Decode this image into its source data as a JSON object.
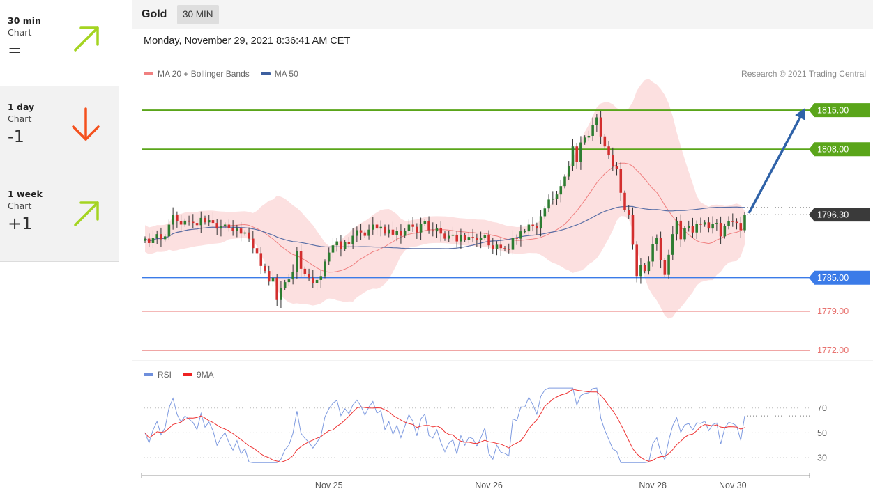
{
  "sidebar": {
    "items": [
      {
        "period": "30 min",
        "sub": "Chart",
        "signal": "=",
        "direction": "up",
        "arrow_color": "#a4d421"
      },
      {
        "period": "1 day",
        "sub": "Chart",
        "signal": "-1",
        "direction": "down",
        "arrow_color": "#f4511e"
      },
      {
        "period": "1 week",
        "sub": "Chart",
        "signal": "+1",
        "direction": "up",
        "arrow_color": "#a4d421"
      }
    ]
  },
  "header": {
    "title": "Gold",
    "timeframe": "30 MIN"
  },
  "chart": {
    "datetime": "Monday, November 29, 2021 8:36:41 AM CET",
    "legend": [
      {
        "label": "MA 20 + Bollinger Bands",
        "color": "#f08080"
      },
      {
        "label": "MA 50",
        "color": "#3d5f9f"
      }
    ],
    "research": "Research © 2021 Trading Central",
    "rsi_legend": [
      {
        "label": "RSI",
        "color": "#6f8fdc"
      },
      {
        "label": "9MA",
        "color": "#ee2222"
      }
    ]
  },
  "chart_data": [
    {
      "type": "candlestick",
      "title": "Gold",
      "x_ticks": [
        "Nov 25",
        "Nov 26",
        "Nov 28",
        "Nov 30"
      ],
      "ylim": [
        1770.5,
        1818.5
      ],
      "levels": [
        {
          "value": 1815.0,
          "label": "1815.00",
          "color": "#5aa51a",
          "kind": "resistance"
        },
        {
          "value": 1808.0,
          "label": "1808.00",
          "color": "#5aa51a",
          "kind": "resistance"
        },
        {
          "value": 1796.3,
          "label": "1796.30",
          "color": "#3a3a3a",
          "kind": "last"
        },
        {
          "value": 1785.0,
          "label": "1785.00",
          "color": "#3b7be8",
          "kind": "pivot"
        },
        {
          "value": 1779.0,
          "label": "1779.00",
          "color": "#e8726f",
          "kind": "support"
        },
        {
          "value": 1772.0,
          "label": "1772.00",
          "color": "#e8726f",
          "kind": "support"
        }
      ],
      "close": [
        1792.0,
        1791.2,
        1792.1,
        1792.8,
        1791.9,
        1792.4,
        1794.5,
        1796.2,
        1795.1,
        1794.5,
        1795.2,
        1795.0,
        1794.8,
        1794.4,
        1795.7,
        1794.9,
        1795.3,
        1794.8,
        1793.8,
        1794.2,
        1794.5,
        1793.9,
        1793.4,
        1793.8,
        1792.9,
        1793.1,
        1792.0,
        1790.3,
        1789.4,
        1787.1,
        1786.2,
        1784.3,
        1785.0,
        1781.0,
        1783.2,
        1784.2,
        1784.7,
        1786.0,
        1789.8,
        1786.6,
        1785.7,
        1785.0,
        1784.0,
        1784.6,
        1785.3,
        1787.9,
        1789.5,
        1790.8,
        1791.5,
        1790.2,
        1791.4,
        1791.0,
        1792.5,
        1793.5,
        1793.1,
        1792.5,
        1793.6,
        1794.5,
        1793.8,
        1794.1,
        1792.9,
        1793.6,
        1792.7,
        1793.4,
        1792.5,
        1793.4,
        1794.5,
        1794.1,
        1793.1,
        1794.6,
        1795.1,
        1793.5,
        1793.3,
        1793.9,
        1792.9,
        1792.0,
        1792.5,
        1792.7,
        1791.5,
        1792.6,
        1791.8,
        1792.3,
        1792.2,
        1791.7,
        1792.1,
        1792.6,
        1790.8,
        1790.2,
        1790.9,
        1790.3,
        1790.2,
        1790.0,
        1792.1,
        1792.0,
        1793.3,
        1793.3,
        1794.5,
        1794.2,
        1793.8,
        1796.0,
        1797.4,
        1799.0,
        1799.1,
        1799.9,
        1801.4,
        1803.1,
        1805.0,
        1808.5,
        1805.7,
        1809.2,
        1810.1,
        1810.4,
        1812.3,
        1813.7,
        1810.3,
        1808.5,
        1806.9,
        1805.0,
        1804.5,
        1800.2,
        1797.1,
        1796.2,
        1790.9,
        1785.3,
        1787.3,
        1786.2,
        1787.9,
        1791.0,
        1792.1,
        1788.1,
        1785.5,
        1789.1,
        1792.8,
        1795.2,
        1791.9,
        1793.9,
        1794.3,
        1793.1,
        1794.6,
        1794.5,
        1794.9,
        1793.8,
        1794.6,
        1794.8,
        1792.4,
        1794.3,
        1795.1,
        1795.0,
        1794.8,
        1793.5,
        1796.3
      ],
      "rsi_yticks": [
        70,
        50,
        30
      ],
      "rsi_ylim": [
        20,
        90
      ]
    }
  ]
}
